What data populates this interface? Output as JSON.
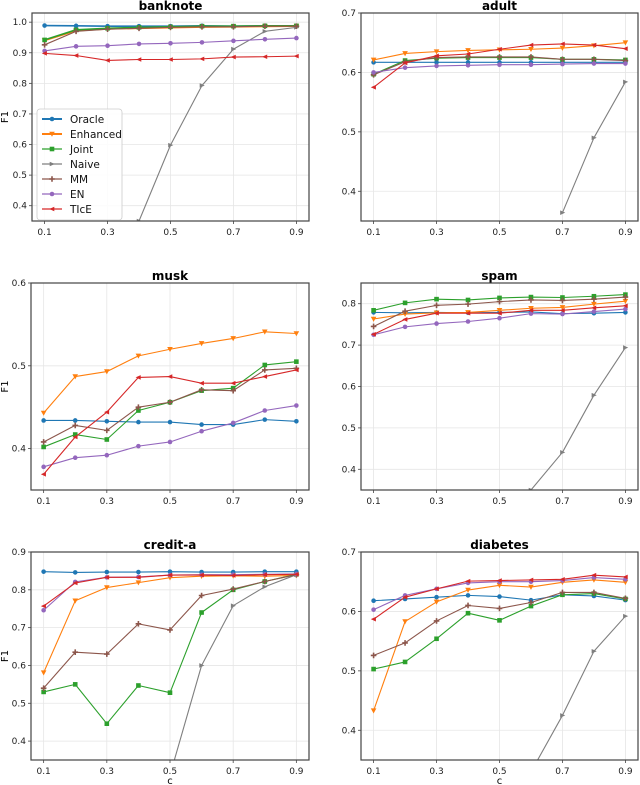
{
  "chart_data": {
    "type": "line",
    "x": [
      0.1,
      0.2,
      0.3,
      0.4,
      0.5,
      0.6,
      0.7,
      0.8,
      0.9
    ],
    "xlabel": "c",
    "ylabel": "F1",
    "grid": true,
    "legend": {
      "placement": "lower-left of first panel",
      "entries": [
        "Oracle",
        "Enhanced",
        "Joint",
        "Naive",
        "MM",
        "EN",
        "TIcE"
      ]
    },
    "series_styles": [
      {
        "name": "Oracle",
        "color": "#1f77b4",
        "marker": "circle"
      },
      {
        "name": "Enhanced",
        "color": "#ff7f0e",
        "marker": "triangle-down"
      },
      {
        "name": "Joint",
        "color": "#2ca02c",
        "marker": "square"
      },
      {
        "name": "Naive",
        "color": "#7f7f7f",
        "marker": "triangle-right"
      },
      {
        "name": "MM",
        "color": "#8c564b",
        "marker": "plus"
      },
      {
        "name": "EN",
        "color": "#9467bd",
        "marker": "circle"
      },
      {
        "name": "TIcE",
        "color": "#d62728",
        "marker": "triangle-left"
      }
    ],
    "panels": [
      {
        "title": "banknote",
        "ylim": [
          0.35,
          1.03
        ],
        "yticks": [
          "0.4",
          "0.5",
          "0.6",
          "0.7",
          "0.8",
          "0.9",
          "1.0"
        ],
        "xticks": [
          "0.1",
          "0.3",
          "0.5",
          "0.7",
          "0.9"
        ],
        "show_ylabel": true,
        "show_xlabel": false,
        "series": [
          {
            "name": "Oracle",
            "values": [
              0.989,
              0.988,
              0.987,
              0.987,
              0.987,
              0.988,
              0.987,
              0.988,
              0.988
            ]
          },
          {
            "name": "Enhanced",
            "values": [
              0.94,
              0.972,
              0.978,
              0.98,
              0.982,
              0.984,
              0.985,
              0.986,
              0.987
            ]
          },
          {
            "name": "Joint",
            "values": [
              0.942,
              0.975,
              0.98,
              0.983,
              0.985,
              0.987,
              0.987,
              0.988,
              0.988
            ]
          },
          {
            "name": "Naive",
            "values": [
              null,
              null,
              null,
              0.35,
              0.598,
              0.793,
              0.912,
              0.97,
              0.983
            ]
          },
          {
            "name": "MM",
            "values": [
              0.926,
              0.97,
              0.977,
              0.98,
              0.983,
              0.985,
              0.985,
              0.987,
              0.987
            ]
          },
          {
            "name": "EN",
            "values": [
              0.906,
              0.921,
              0.923,
              0.929,
              0.931,
              0.934,
              0.939,
              0.944,
              0.948
            ]
          },
          {
            "name": "TIcE",
            "values": [
              0.898,
              0.891,
              0.875,
              0.878,
              0.878,
              0.88,
              0.886,
              0.887,
              0.889
            ]
          }
        ]
      },
      {
        "title": "adult",
        "ylim": [
          0.35,
          0.7
        ],
        "yticks": [
          "0.4",
          "0.5",
          "0.6",
          "0.7"
        ],
        "xticks": [
          "0.1",
          "0.3",
          "0.5",
          "0.7",
          "0.9"
        ],
        "show_ylabel": false,
        "show_xlabel": false,
        "series": [
          {
            "name": "Oracle",
            "values": [
              0.617,
              0.617,
              0.617,
              0.617,
              0.617,
              0.617,
              0.617,
              0.617,
              0.617
            ]
          },
          {
            "name": "Enhanced",
            "values": [
              0.621,
              0.632,
              0.635,
              0.637,
              0.638,
              0.639,
              0.641,
              0.645,
              0.65
            ]
          },
          {
            "name": "Joint",
            "values": [
              0.597,
              0.62,
              0.624,
              0.625,
              0.625,
              0.625,
              0.622,
              0.622,
              0.621
            ]
          },
          {
            "name": "Naive",
            "values": [
              null,
              null,
              null,
              null,
              null,
              null,
              0.364,
              0.49,
              0.584
            ]
          },
          {
            "name": "MM",
            "values": [
              0.596,
              0.618,
              0.625,
              0.626,
              0.626,
              0.626,
              0.622,
              0.622,
              0.62
            ]
          },
          {
            "name": "EN",
            "values": [
              0.6,
              0.608,
              0.611,
              0.612,
              0.613,
              0.613,
              0.614,
              0.615,
              0.615
            ]
          },
          {
            "name": "TIcE",
            "values": [
              0.575,
              0.616,
              0.628,
              0.631,
              0.639,
              0.646,
              0.648,
              0.646,
              0.64
            ]
          }
        ]
      },
      {
        "title": "musk",
        "ylim": [
          0.35,
          0.6
        ],
        "yticks": [
          "0.4",
          "0.5",
          "0.6"
        ],
        "xticks": [
          "0.1",
          "0.3",
          "0.5",
          "0.7",
          "0.9"
        ],
        "show_ylabel": true,
        "show_xlabel": false,
        "series": [
          {
            "name": "Oracle",
            "values": [
              0.434,
              0.434,
              0.433,
              0.432,
              0.432,
              0.429,
              0.429,
              0.435,
              0.433
            ]
          },
          {
            "name": "Enhanced",
            "values": [
              0.443,
              0.487,
              0.493,
              0.512,
              0.52,
              0.527,
              0.533,
              0.541,
              0.539
            ]
          },
          {
            "name": "Joint",
            "values": [
              0.402,
              0.417,
              0.411,
              0.446,
              0.456,
              0.47,
              0.473,
              0.501,
              0.505
            ]
          },
          {
            "name": "Naive",
            "values": [
              null,
              null,
              null,
              null,
              null,
              null,
              null,
              null,
              null
            ]
          },
          {
            "name": "MM",
            "values": [
              0.408,
              0.428,
              0.422,
              0.45,
              0.456,
              0.471,
              0.47,
              0.495,
              0.497
            ]
          },
          {
            "name": "EN",
            "values": [
              0.378,
              0.389,
              0.392,
              0.403,
              0.408,
              0.421,
              0.431,
              0.446,
              0.452
            ]
          },
          {
            "name": "TIcE",
            "values": [
              0.369,
              0.414,
              0.444,
              0.486,
              0.487,
              0.479,
              0.479,
              0.487,
              0.495
            ]
          }
        ]
      },
      {
        "title": "spam",
        "ylim": [
          0.35,
          0.85
        ],
        "yticks": [
          "0.4",
          "0.5",
          "0.6",
          "0.7",
          "0.8"
        ],
        "xticks": [
          "0.1",
          "0.3",
          "0.5",
          "0.7",
          "0.9"
        ],
        "show_ylabel": false,
        "show_xlabel": false,
        "series": [
          {
            "name": "Oracle",
            "values": [
              0.779,
              0.778,
              0.779,
              0.778,
              0.779,
              0.78,
              0.776,
              0.777,
              0.779
            ]
          },
          {
            "name": "Enhanced",
            "values": [
              0.763,
              0.775,
              0.778,
              0.779,
              0.784,
              0.789,
              0.791,
              0.799,
              0.806
            ]
          },
          {
            "name": "Joint",
            "values": [
              0.784,
              0.802,
              0.811,
              0.809,
              0.814,
              0.816,
              0.815,
              0.818,
              0.822
            ]
          },
          {
            "name": "Naive",
            "values": [
              null,
              null,
              null,
              null,
              0.31,
              0.35,
              0.441,
              0.579,
              0.694
            ]
          },
          {
            "name": "MM",
            "values": [
              0.745,
              0.782,
              0.796,
              0.799,
              0.805,
              0.809,
              0.808,
              0.811,
              0.816
            ]
          },
          {
            "name": "EN",
            "values": [
              0.725,
              0.744,
              0.752,
              0.757,
              0.765,
              0.776,
              0.775,
              0.781,
              0.787
            ]
          },
          {
            "name": "TIcE",
            "values": [
              0.726,
              0.762,
              0.777,
              0.777,
              0.777,
              0.784,
              0.784,
              0.79,
              0.795
            ]
          }
        ]
      },
      {
        "title": "credit-a",
        "ylim": [
          0.35,
          0.9
        ],
        "yticks": [
          "0.4",
          "0.5",
          "0.6",
          "0.7",
          "0.8",
          "0.9"
        ],
        "xticks": [
          "0.1",
          "0.3",
          "0.5",
          "0.7",
          "0.9"
        ],
        "show_ylabel": true,
        "show_xlabel": true,
        "series": [
          {
            "name": "Oracle",
            "values": [
              0.848,
              0.846,
              0.847,
              0.847,
              0.848,
              0.847,
              0.847,
              0.848,
              0.848
            ]
          },
          {
            "name": "Enhanced",
            "values": [
              0.581,
              0.771,
              0.806,
              0.819,
              0.832,
              0.836,
              0.837,
              0.836,
              0.838
            ]
          },
          {
            "name": "Joint",
            "values": [
              0.53,
              0.55,
              0.446,
              0.547,
              0.528,
              0.74,
              0.8,
              0.822,
              0.841
            ]
          },
          {
            "name": "Naive",
            "values": [
              null,
              null,
              null,
              null,
              0.31,
              0.6,
              0.758,
              0.808,
              0.84
            ]
          },
          {
            "name": "MM",
            "values": [
              0.54,
              0.635,
              0.63,
              0.71,
              0.694,
              0.785,
              0.802,
              0.822,
              0.84
            ]
          },
          {
            "name": "EN",
            "values": [
              0.746,
              0.821,
              0.833,
              0.834,
              0.839,
              0.84,
              0.84,
              0.841,
              0.842
            ]
          },
          {
            "name": "TIcE",
            "values": [
              0.757,
              0.818,
              0.833,
              0.833,
              0.839,
              0.839,
              0.838,
              0.84,
              0.841
            ]
          }
        ]
      },
      {
        "title": "diabetes",
        "ylim": [
          0.35,
          0.7
        ],
        "yticks": [
          "0.4",
          "0.5",
          "0.6",
          "0.7"
        ],
        "xticks": [
          "0.1",
          "0.3",
          "0.5",
          "0.7",
          "0.9"
        ],
        "show_ylabel": false,
        "show_xlabel": true,
        "series": [
          {
            "name": "Oracle",
            "values": [
              0.618,
              0.621,
              0.624,
              0.627,
              0.625,
              0.619,
              0.628,
              0.626,
              0.619
            ]
          },
          {
            "name": "Enhanced",
            "values": [
              0.433,
              0.583,
              0.616,
              0.636,
              0.644,
              0.641,
              0.649,
              0.653,
              0.649
            ]
          },
          {
            "name": "Joint",
            "values": [
              0.503,
              0.515,
              0.554,
              0.597,
              0.585,
              0.609,
              0.628,
              0.63,
              0.621
            ]
          },
          {
            "name": "Naive",
            "values": [
              null,
              null,
              null,
              null,
              null,
              0.33,
              0.425,
              0.533,
              0.592
            ]
          },
          {
            "name": "MM",
            "values": [
              0.526,
              0.547,
              0.584,
              0.61,
              0.605,
              0.615,
              0.632,
              0.632,
              0.622
            ]
          },
          {
            "name": "EN",
            "values": [
              0.603,
              0.627,
              0.638,
              0.648,
              0.65,
              0.65,
              0.652,
              0.657,
              0.654
            ]
          },
          {
            "name": "TIcE",
            "values": [
              0.587,
              0.624,
              0.638,
              0.651,
              0.652,
              0.653,
              0.654,
              0.661,
              0.658
            ]
          }
        ]
      }
    ]
  }
}
